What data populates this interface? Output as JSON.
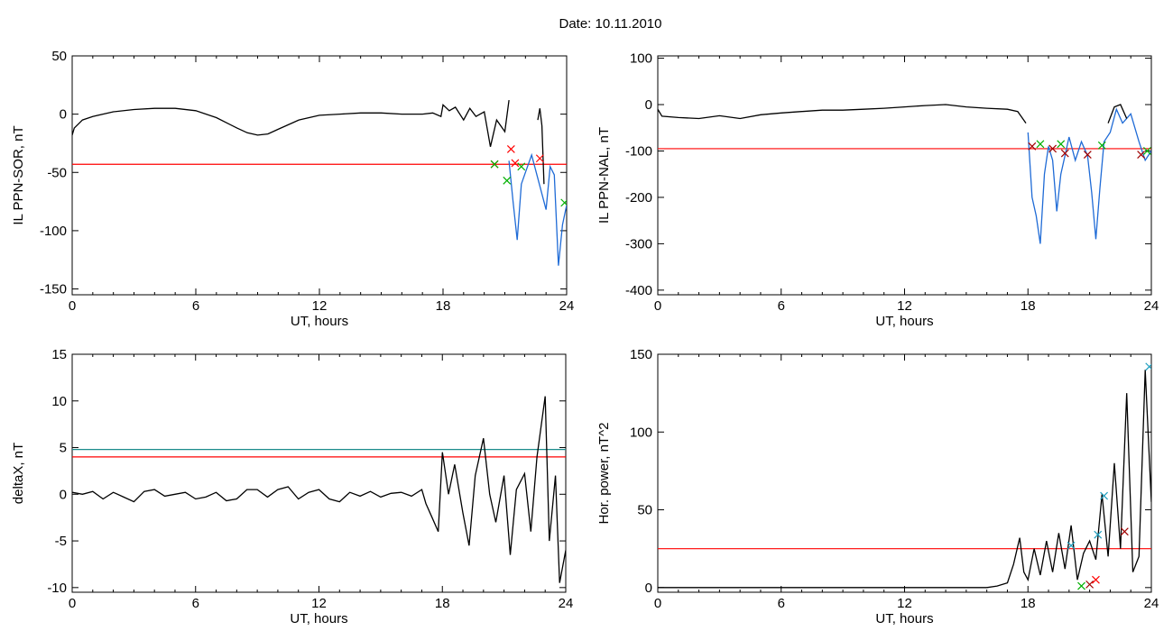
{
  "figure": {
    "title": "Date:  10.11.2010"
  },
  "chart_data": [
    {
      "type": "line",
      "ylabel": "IL PPN-SOR, nT",
      "xlabel": "UT, hours",
      "xlim": [
        0,
        24
      ],
      "ylim": [
        -155,
        50
      ],
      "xticks": [
        0,
        6,
        12,
        18,
        24
      ],
      "yticks": [
        -150,
        -100,
        -50,
        0,
        50
      ],
      "threshold_lines": [
        {
          "value": -43,
          "color": "#ff0000"
        }
      ],
      "series": [
        {
          "color": "#000000",
          "x": [
            0,
            0.1,
            0.5,
            1,
            2,
            3,
            4,
            5,
            6,
            7,
            8,
            8.5,
            9,
            9.5,
            10,
            11,
            12,
            13,
            14,
            15,
            16,
            17,
            17.5,
            17.9,
            18,
            18.3,
            18.6,
            19,
            19.3,
            19.6,
            20,
            20.3,
            20.6,
            21,
            21.2
          ],
          "y": [
            -18,
            -12,
            -5,
            -2,
            2,
            4,
            5,
            5,
            3,
            -3,
            -12,
            -16,
            -18,
            -17,
            -13,
            -5,
            -1,
            0,
            1,
            1,
            0,
            0,
            1,
            -2,
            8,
            3,
            6,
            -5,
            5,
            -2,
            2,
            -28,
            -5,
            -15,
            12
          ]
        },
        {
          "color": "#1f6bd6",
          "x": [
            21.2,
            21.4,
            21.6,
            21.8,
            22.0,
            22.3,
            22.6,
            23.0,
            23.2,
            23.4,
            23.6,
            23.8,
            24.0
          ],
          "y": [
            -40,
            -75,
            -108,
            -60,
            -50,
            -35,
            -55,
            -82,
            -45,
            -52,
            -130,
            -95,
            -78
          ]
        },
        {
          "color": "#000000",
          "x": [
            22.6,
            22.7,
            22.8,
            22.9
          ],
          "y": [
            -5,
            5,
            -10,
            -60
          ]
        }
      ],
      "markers": [
        {
          "x": 20.5,
          "y": -43,
          "color": "#ff0000"
        },
        {
          "x": 20.5,
          "y": -43,
          "color": "#00b000"
        },
        {
          "x": 21.3,
          "y": -30,
          "color": "#ff0000"
        },
        {
          "x": 21.5,
          "y": -42,
          "color": "#ff0000"
        },
        {
          "x": 21.8,
          "y": -45,
          "color": "#00b000"
        },
        {
          "x": 21.1,
          "y": -57,
          "color": "#00b000"
        },
        {
          "x": 22.7,
          "y": -38,
          "color": "#ff0000"
        },
        {
          "x": 23.9,
          "y": -76,
          "color": "#00b000"
        }
      ]
    },
    {
      "type": "line",
      "ylabel": "IL PPN-NAL, nT",
      "xlabel": "UT, hours",
      "xlim": [
        0,
        24
      ],
      "ylim": [
        -410,
        105
      ],
      "xticks": [
        0,
        6,
        12,
        18,
        24
      ],
      "yticks": [
        -400,
        -300,
        -200,
        -100,
        0,
        100
      ],
      "threshold_lines": [
        {
          "value": -95,
          "color": "#ff0000"
        }
      ],
      "series": [
        {
          "color": "#000000",
          "x": [
            0,
            0.2,
            1,
            2,
            3,
            4,
            5,
            6,
            7,
            8,
            9,
            10,
            11,
            12,
            13,
            14,
            15,
            16,
            17,
            17.5,
            17.9
          ],
          "y": [
            -10,
            -25,
            -28,
            -30,
            -24,
            -30,
            -22,
            -18,
            -15,
            -12,
            -12,
            -10,
            -8,
            -5,
            -2,
            0,
            -5,
            -8,
            -10,
            -15,
            -40
          ]
        },
        {
          "color": "#1f6bd6",
          "x": [
            18.0,
            18.2,
            18.4,
            18.6,
            18.8,
            19.0,
            19.2,
            19.4,
            19.6,
            19.8,
            20.0,
            20.3,
            20.6,
            20.9,
            21.1,
            21.3,
            21.5,
            21.7,
            22.0,
            22.3,
            22.6,
            23.0,
            23.4,
            23.7,
            24.0
          ],
          "y": [
            -60,
            -200,
            -240,
            -300,
            -150,
            -90,
            -120,
            -230,
            -150,
            -110,
            -70,
            -120,
            -80,
            -110,
            -190,
            -290,
            -180,
            -80,
            -60,
            -10,
            -40,
            -20,
            -80,
            -120,
            -100
          ]
        },
        {
          "color": "#000000",
          "x": [
            21.9,
            22.2,
            22.5,
            22.8
          ],
          "y": [
            -40,
            -5,
            0,
            -30
          ]
        }
      ],
      "markers": [
        {
          "x": 18.2,
          "y": -90,
          "color": "#a00000"
        },
        {
          "x": 18.6,
          "y": -85,
          "color": "#00b000"
        },
        {
          "x": 19.2,
          "y": -95,
          "color": "#a00000"
        },
        {
          "x": 19.6,
          "y": -85,
          "color": "#00b000"
        },
        {
          "x": 19.8,
          "y": -105,
          "color": "#a00000"
        },
        {
          "x": 20.9,
          "y": -108,
          "color": "#a00000"
        },
        {
          "x": 21.6,
          "y": -88,
          "color": "#00b000"
        },
        {
          "x": 23.5,
          "y": -108,
          "color": "#a00000"
        },
        {
          "x": 23.8,
          "y": -100,
          "color": "#00b000"
        }
      ]
    },
    {
      "type": "line",
      "ylabel": "deltaX, nT",
      "xlabel": "UT, hours",
      "xlim": [
        0,
        24
      ],
      "ylim": [
        -10.5,
        15
      ],
      "xticks": [
        0,
        6,
        12,
        18,
        24
      ],
      "yticks": [
        -10,
        -5,
        0,
        5,
        10,
        15
      ],
      "threshold_lines": [
        {
          "value": 4.8,
          "color": "#1a8c8c"
        },
        {
          "value": 4.0,
          "color": "#ff0000"
        }
      ],
      "series": [
        {
          "color": "#000000",
          "x": [
            0,
            0.5,
            1,
            1.5,
            2,
            2.5,
            3,
            3.5,
            4,
            4.5,
            5,
            5.5,
            6,
            6.5,
            7,
            7.5,
            8,
            8.5,
            9,
            9.5,
            10,
            10.5,
            11,
            11.5,
            12,
            12.5,
            13,
            13.5,
            14,
            14.5,
            15,
            15.5,
            16,
            16.5,
            17,
            17.2,
            17.5,
            17.8,
            18,
            18.3,
            18.6,
            19,
            19.3,
            19.6,
            20,
            20.3,
            20.6,
            21,
            21.3,
            21.6,
            22,
            22.3,
            22.6,
            23,
            23.2,
            23.5,
            23.7,
            24
          ],
          "y": [
            0.2,
            0,
            0.3,
            -0.5,
            0.2,
            -0.3,
            -0.8,
            0.3,
            0.5,
            -0.2,
            0,
            0.2,
            -0.5,
            -0.3,
            0.2,
            -0.7,
            -0.5,
            0.5,
            0.5,
            -0.3,
            0.5,
            0.8,
            -0.5,
            0.2,
            0.5,
            -0.5,
            -0.8,
            0.2,
            -0.2,
            0.3,
            -0.3,
            0.1,
            0.2,
            -0.2,
            0.5,
            -1,
            -2.5,
            -4,
            4.5,
            0,
            3.2,
            -2,
            -5.5,
            2,
            6,
            0,
            -3,
            2,
            -6.5,
            0.5,
            2.2,
            -4,
            4,
            10.5,
            -5,
            2,
            -9.5,
            -6
          ]
        }
      ],
      "markers": []
    },
    {
      "type": "line",
      "ylabel": "Hor. power, nT^2",
      "xlabel": "UT, hours",
      "xlim": [
        0,
        24
      ],
      "ylim": [
        -3,
        150
      ],
      "xticks": [
        0,
        6,
        12,
        18,
        24
      ],
      "yticks": [
        0,
        50,
        100,
        150
      ],
      "threshold_lines": [
        {
          "value": 25,
          "color": "#ff0000"
        }
      ],
      "series": [
        {
          "color": "#000000",
          "x": [
            0,
            1,
            2,
            3,
            4,
            5,
            6,
            7,
            8,
            9,
            10,
            11,
            12,
            13,
            14,
            15,
            16,
            16.5,
            17,
            17.3,
            17.6,
            17.8,
            18,
            18.3,
            18.6,
            18.9,
            19.2,
            19.5,
            19.8,
            20.1,
            20.4,
            20.7,
            21,
            21.3,
            21.6,
            21.9,
            22.2,
            22.5,
            22.8,
            23.1,
            23.4,
            23.7,
            24
          ],
          "y": [
            0,
            0,
            0,
            0,
            0,
            0,
            0,
            0,
            0,
            0,
            0,
            0,
            0,
            0,
            0,
            0,
            0,
            1,
            3,
            15,
            32,
            10,
            5,
            25,
            8,
            30,
            10,
            35,
            12,
            40,
            5,
            22,
            30,
            18,
            60,
            20,
            80,
            25,
            125,
            10,
            20,
            140,
            55
          ]
        }
      ],
      "markers": [
        {
          "x": 20.6,
          "y": 1,
          "color": "#00b000"
        },
        {
          "x": 21.0,
          "y": 2,
          "color": "#a00000"
        },
        {
          "x": 21.3,
          "y": 5,
          "color": "#ff0000"
        },
        {
          "x": 20.1,
          "y": 27,
          "color": "#1f9fbf"
        },
        {
          "x": 21.4,
          "y": 34,
          "color": "#1f9fbf"
        },
        {
          "x": 21.7,
          "y": 59,
          "color": "#1f9fbf"
        },
        {
          "x": 22.7,
          "y": 36,
          "color": "#a00000"
        },
        {
          "x": 23.9,
          "y": 142,
          "color": "#1f9fbf"
        }
      ]
    }
  ]
}
